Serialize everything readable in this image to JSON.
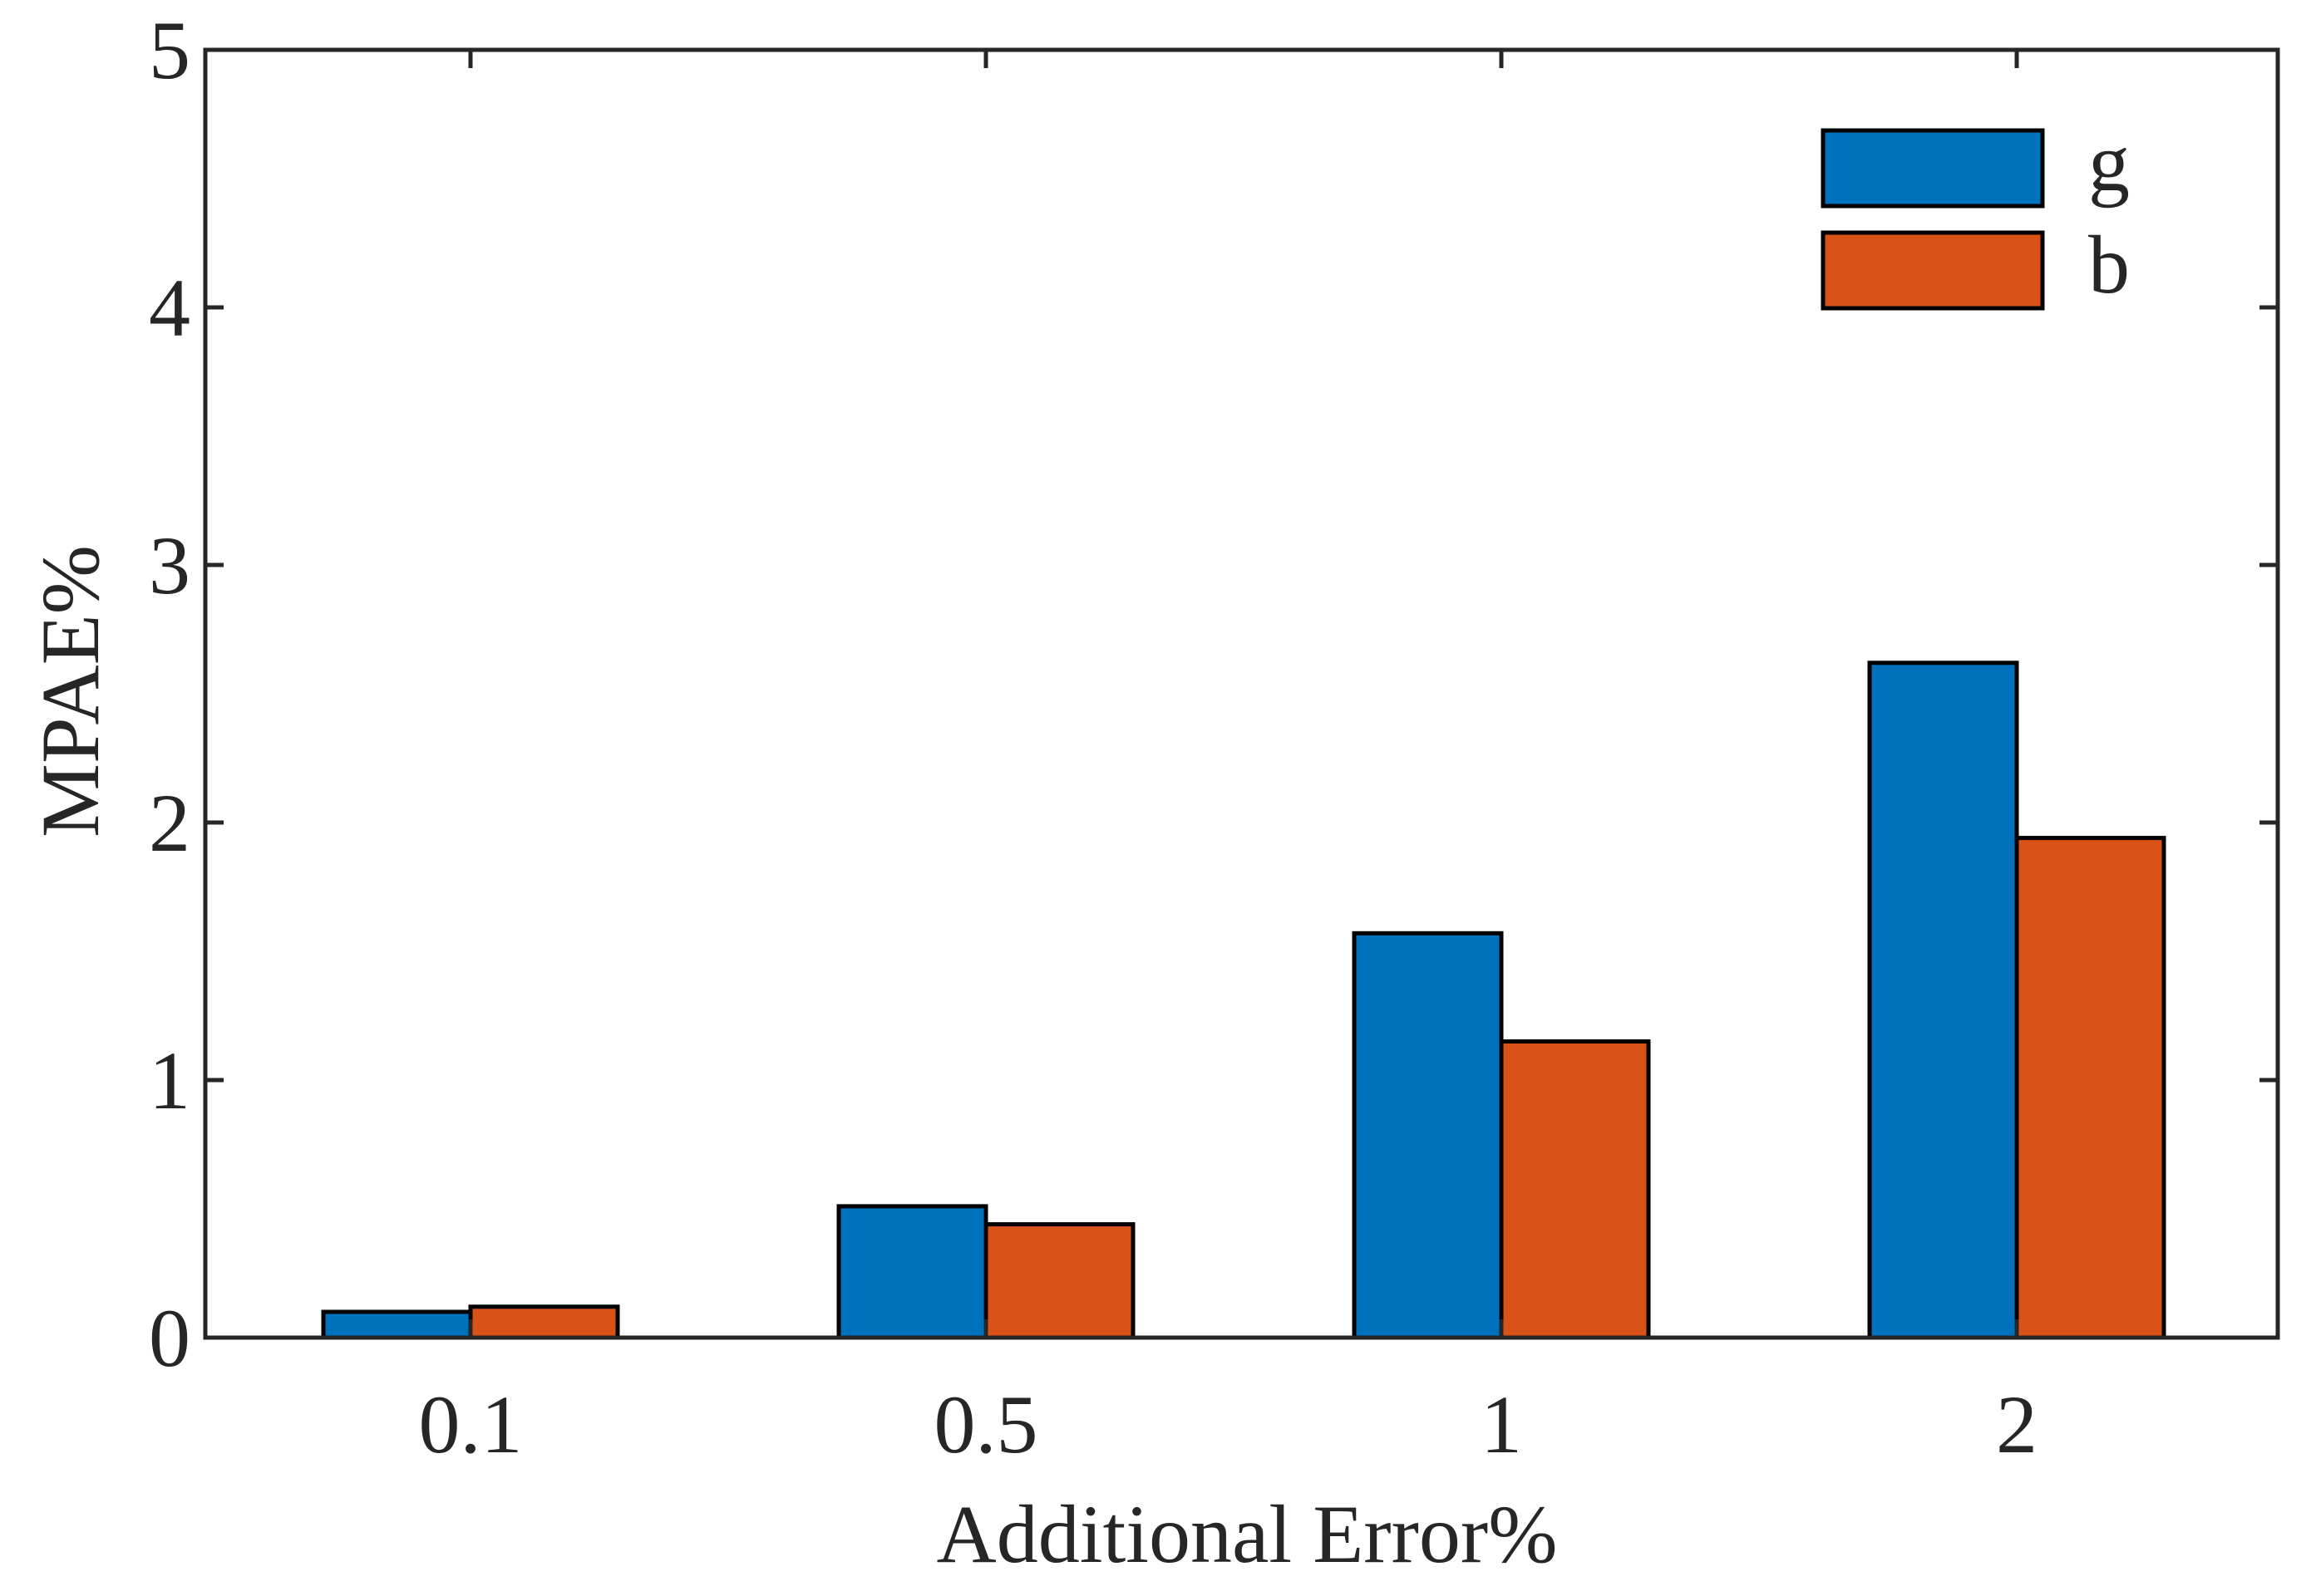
{
  "chart_data": {
    "type": "bar",
    "title": "",
    "xlabel": "Additional Error%",
    "ylabel": "MPAE%",
    "categories": [
      "0.1",
      "0.5",
      "1",
      "2"
    ],
    "series": [
      {
        "name": "g",
        "color": "#0072BD",
        "values": [
          0.1,
          0.51,
          1.57,
          2.62
        ]
      },
      {
        "name": "b",
        "color": "#D95319",
        "values": [
          0.12,
          0.44,
          1.15,
          1.94
        ]
      }
    ],
    "ylim": [
      0,
      5
    ],
    "yticks": [
      "0",
      "1",
      "2",
      "3",
      "4",
      "5"
    ],
    "grid": false,
    "legend_position": "top-right"
  }
}
